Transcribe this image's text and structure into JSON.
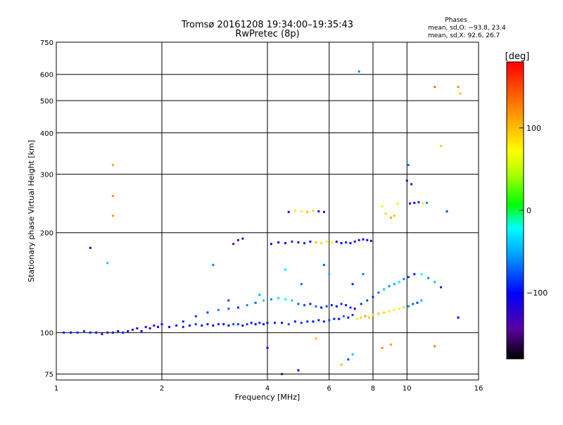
{
  "chart_data": {
    "type": "scatter",
    "title": "Tromsø 20161208 19:34:00–19:35:43",
    "subtitle": "RwPretec (8p)",
    "xlabel": "Frequency [MHz]",
    "ylabel": "Stationary phase Virtual Height [km]",
    "x_scale": "log",
    "y_scale": "log",
    "xlim": [
      1,
      16
    ],
    "ylim": [
      72,
      750
    ],
    "x_ticks": [
      1,
      2,
      4,
      6,
      8,
      10,
      16
    ],
    "x_tick_labels": [
      "1",
      "2",
      "4",
      "6",
      "8",
      "10",
      "16"
    ],
    "y_ticks": [
      75,
      100,
      200,
      300,
      400,
      500,
      600,
      750
    ],
    "y_tick_labels": [
      "75",
      "100",
      "200",
      "300",
      "400",
      "500",
      "600",
      "750"
    ],
    "grid": true,
    "legend_title": "Phases",
    "legend_lines": [
      "mean, sd,O: −93.8, 23.4",
      "mean, sd,X: 92.6, 26.7"
    ],
    "colorbar": {
      "label": "[deg]",
      "range": [
        -180,
        180
      ],
      "tick_values": [
        100,
        0,
        -100
      ],
      "tick_labels": [
        "100",
        "0",
        "−100"
      ]
    },
    "series": [
      {
        "name": "echoes",
        "points": [
          [
            1.05,
            100,
            -95
          ],
          [
            1.1,
            100,
            -100
          ],
          [
            1.15,
            100,
            -90
          ],
          [
            1.2,
            101,
            -85
          ],
          [
            1.25,
            100,
            -110
          ],
          [
            1.3,
            100,
            -100
          ],
          [
            1.35,
            99,
            -95
          ],
          [
            1.4,
            100,
            -120
          ],
          [
            1.45,
            100,
            -105
          ],
          [
            1.5,
            101,
            -100
          ],
          [
            1.55,
            100,
            -115
          ],
          [
            1.6,
            101,
            -110
          ],
          [
            1.65,
            102,
            -125
          ],
          [
            1.7,
            103,
            -120
          ],
          [
            1.75,
            101,
            -105
          ],
          [
            1.8,
            104,
            -130
          ],
          [
            1.85,
            103,
            -110
          ],
          [
            1.9,
            105,
            -120
          ],
          [
            1.95,
            104,
            -100
          ],
          [
            2.0,
            106,
            -95
          ],
          [
            2.1,
            104,
            -105
          ],
          [
            2.2,
            105,
            -110
          ],
          [
            2.3,
            104,
            -90
          ],
          [
            2.4,
            105,
            -100
          ],
          [
            2.5,
            106,
            -85
          ],
          [
            2.6,
            105,
            -95
          ],
          [
            2.7,
            106,
            -100
          ],
          [
            2.8,
            105,
            -110
          ],
          [
            2.9,
            106,
            -90
          ],
          [
            3.0,
            106,
            -100
          ],
          [
            3.1,
            105,
            -95
          ],
          [
            3.2,
            106,
            -80
          ],
          [
            3.3,
            106,
            -90
          ],
          [
            3.4,
            105,
            -100
          ],
          [
            3.5,
            106,
            -85
          ],
          [
            3.6,
            107,
            -95
          ],
          [
            3.7,
            106,
            -100
          ],
          [
            3.8,
            107,
            -90
          ],
          [
            3.9,
            106,
            -110
          ],
          [
            4.0,
            107,
            -95
          ],
          [
            4.2,
            107,
            -90
          ],
          [
            4.4,
            107,
            -100
          ],
          [
            4.6,
            106,
            -80
          ],
          [
            4.8,
            108,
            -95
          ],
          [
            5.0,
            107,
            -85
          ],
          [
            5.2,
            108,
            -90
          ],
          [
            5.4,
            108,
            -100
          ],
          [
            5.6,
            109,
            -95
          ],
          [
            5.8,
            108,
            -90
          ],
          [
            6.0,
            109,
            -80
          ],
          [
            6.2,
            110,
            -90
          ],
          [
            6.4,
            110,
            -100
          ],
          [
            6.6,
            112,
            -70
          ],
          [
            6.8,
            111,
            -95
          ],
          [
            7.0,
            113,
            -85
          ],
          [
            7.2,
            110,
            70
          ],
          [
            7.4,
            111,
            90
          ],
          [
            7.6,
            112,
            110
          ],
          [
            7.8,
            111,
            95
          ],
          [
            8.0,
            113,
            85
          ],
          [
            8.3,
            114,
            100
          ],
          [
            8.6,
            115,
            95
          ],
          [
            8.9,
            116,
            80
          ],
          [
            9.2,
            117,
            75
          ],
          [
            9.5,
            118,
            60
          ],
          [
            9.8,
            119,
            50
          ],
          [
            10.1,
            120,
            -60
          ],
          [
            10.4,
            122,
            -70
          ],
          [
            10.7,
            123,
            -80
          ],
          [
            11.0,
            125,
            -50
          ],
          [
            2.3,
            108,
            -90
          ],
          [
            2.5,
            112,
            -85
          ],
          [
            2.7,
            115,
            -80
          ],
          [
            2.9,
            117,
            -60
          ],
          [
            3.1,
            118,
            -70
          ],
          [
            3.3,
            119,
            -90
          ],
          [
            3.5,
            121,
            -60
          ],
          [
            3.7,
            123,
            -70
          ],
          [
            3.9,
            125,
            -40
          ],
          [
            4.1,
            126,
            -60
          ],
          [
            4.3,
            127,
            -30
          ],
          [
            4.5,
            126,
            -20
          ],
          [
            4.7,
            125,
            -40
          ],
          [
            4.9,
            122,
            -70
          ],
          [
            5.1,
            121,
            -80
          ],
          [
            5.3,
            122,
            -90
          ],
          [
            5.5,
            120,
            -70
          ],
          [
            5.7,
            119,
            -100
          ],
          [
            5.9,
            120,
            -80
          ],
          [
            6.1,
            121,
            -90
          ],
          [
            6.3,
            120,
            -100
          ],
          [
            6.5,
            122,
            -85
          ],
          [
            6.7,
            121,
            -95
          ],
          [
            6.9,
            119,
            -90
          ],
          [
            7.1,
            118,
            -110
          ],
          [
            7.4,
            122,
            -85
          ],
          [
            7.7,
            125,
            -80
          ],
          [
            8.0,
            128,
            -90
          ],
          [
            8.3,
            132,
            -70
          ],
          [
            8.6,
            135,
            -40
          ],
          [
            8.9,
            138,
            -60
          ],
          [
            9.2,
            140,
            -50
          ],
          [
            9.5,
            142,
            -30
          ],
          [
            9.8,
            145,
            -60
          ],
          [
            10.1,
            147,
            -80
          ],
          [
            10.5,
            150,
            -90
          ],
          [
            11.0,
            150,
            -20
          ],
          [
            11.5,
            146,
            -60
          ],
          [
            12.0,
            142,
            -40
          ],
          [
            12.5,
            137,
            -90
          ],
          [
            4.1,
            185,
            -110
          ],
          [
            4.3,
            187,
            -105
          ],
          [
            4.5,
            186,
            -100
          ],
          [
            4.7,
            188,
            -90
          ],
          [
            4.9,
            187,
            -110
          ],
          [
            5.1,
            186,
            -120
          ],
          [
            5.3,
            188,
            -95
          ],
          [
            5.5,
            187,
            100
          ],
          [
            5.7,
            186,
            90
          ],
          [
            5.9,
            188,
            80
          ],
          [
            6.1,
            187,
            70
          ],
          [
            6.3,
            188,
            -100
          ],
          [
            6.5,
            186,
            -110
          ],
          [
            6.7,
            187,
            -90
          ],
          [
            6.9,
            186,
            -100
          ],
          [
            7.1,
            188,
            -95
          ],
          [
            7.3,
            190,
            -120
          ],
          [
            7.5,
            191,
            -100
          ],
          [
            7.7,
            190,
            -110
          ],
          [
            7.9,
            189,
            -115
          ],
          [
            4.6,
            231,
            -110
          ],
          [
            4.8,
            233,
            60
          ],
          [
            5.0,
            232,
            80
          ],
          [
            5.2,
            231,
            100
          ],
          [
            5.4,
            233,
            90
          ],
          [
            5.6,
            232,
            -100
          ],
          [
            5.8,
            231,
            -120
          ],
          [
            3.2,
            185,
            -140
          ],
          [
            3.3,
            190,
            -130
          ],
          [
            3.4,
            192,
            -150
          ],
          [
            9.0,
            222,
            110
          ],
          [
            9.2,
            225,
            100
          ],
          [
            8.7,
            228,
            90
          ],
          [
            8.5,
            240,
            70
          ],
          [
            9.4,
            245,
            80
          ],
          [
            10.2,
            245,
            -110
          ],
          [
            10.5,
            246,
            -100
          ],
          [
            10.8,
            247,
            -90
          ],
          [
            11.1,
            245,
            80
          ],
          [
            11.4,
            246,
            -60
          ],
          [
            10.0,
            287,
            -120
          ],
          [
            10.3,
            280,
            -130
          ],
          [
            10.1,
            320,
            -60
          ],
          [
            7.3,
            612,
            -60
          ],
          [
            1.45,
            320,
            110
          ],
          [
            1.45,
            258,
            120
          ],
          [
            1.45,
            225,
            115
          ],
          [
            1.4,
            162,
            -40
          ],
          [
            1.25,
            180,
            -110
          ],
          [
            12.0,
            550,
            130
          ],
          [
            14.0,
            550,
            120
          ],
          [
            14.2,
            525,
            100
          ],
          [
            12.5,
            365,
            90
          ],
          [
            13.0,
            232,
            -80
          ],
          [
            4.4,
            75,
            -150
          ],
          [
            4.9,
            77,
            -100
          ],
          [
            6.5,
            80,
            100
          ],
          [
            6.8,
            83,
            -80
          ],
          [
            7.0,
            86,
            -40
          ],
          [
            8.5,
            90,
            120
          ],
          [
            9.0,
            92,
            110
          ],
          [
            12.0,
            91,
            130
          ],
          [
            14.0,
            111,
            -100
          ],
          [
            3.8,
            130,
            -50
          ],
          [
            4.0,
            90,
            -100
          ],
          [
            5.5,
            96,
            100
          ],
          [
            3.1,
            125,
            -80
          ],
          [
            2.8,
            160,
            -60
          ],
          [
            5.0,
            140,
            -70
          ],
          [
            6.0,
            150,
            -40
          ],
          [
            7.5,
            150,
            -60
          ],
          [
            4.5,
            155,
            -30
          ],
          [
            5.8,
            160,
            -70
          ],
          [
            7.0,
            140,
            -90
          ]
        ]
      }
    ]
  }
}
